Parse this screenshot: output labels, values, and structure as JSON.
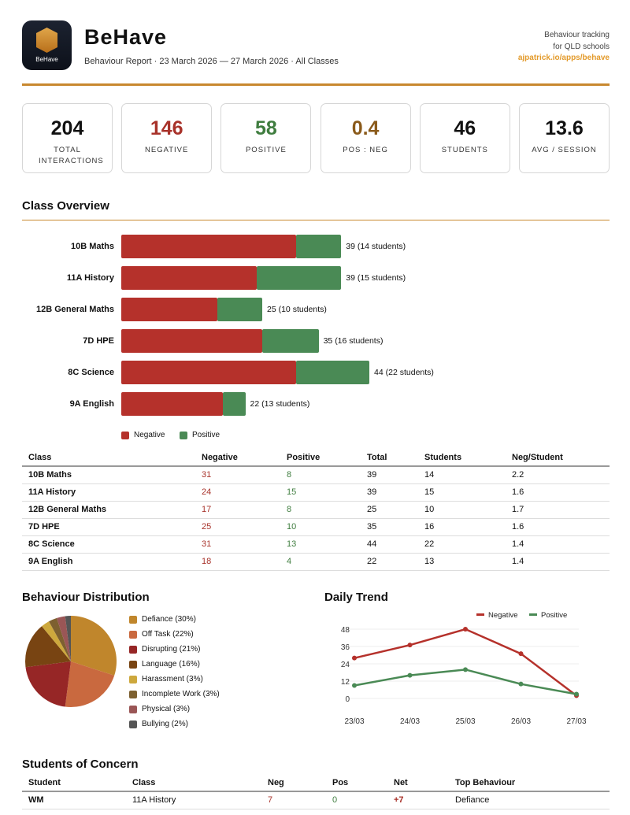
{
  "header": {
    "logo_text": "BeHave",
    "title": "BeHave",
    "subtitle": "Behaviour Report · 23 March 2026 — 27 March 2026 · All Classes",
    "tagline1": "Behaviour tracking",
    "tagline2": "for QLD schools",
    "link": "ajpatrick.io/apps/behave"
  },
  "stats": [
    {
      "value": "204",
      "label": "TOTAL INTERACTIONS",
      "color": "#111111"
    },
    {
      "value": "146",
      "label": "NEGATIVE",
      "color": "#a8322a"
    },
    {
      "value": "58",
      "label": "POSITIVE",
      "color": "#3f7d3f"
    },
    {
      "value": "0.4",
      "label": "POS : NEG",
      "color": "#8a5a1a"
    },
    {
      "value": "46",
      "label": "STUDENTS",
      "color": "#111111"
    },
    {
      "value": "13.6",
      "label": "AVG / SESSION",
      "color": "#111111"
    }
  ],
  "colors": {
    "negative": "#b5312b",
    "positive": "#4a8a55",
    "accent": "#c8882f"
  },
  "overview": {
    "title": "Class Overview",
    "legend": {
      "negative": "Negative",
      "positive": "Positive"
    },
    "bars": [
      {
        "class": "10B Maths",
        "negative": 31,
        "positive": 8,
        "label": "39 (14 students)"
      },
      {
        "class": "11A History",
        "negative": 24,
        "positive": 15,
        "label": "39 (15 students)"
      },
      {
        "class": "12B General Maths",
        "negative": 17,
        "positive": 8,
        "label": "25 (10 students)"
      },
      {
        "class": "7D HPE",
        "negative": 25,
        "positive": 10,
        "label": "35 (16 students)"
      },
      {
        "class": "8C Science",
        "negative": 31,
        "positive": 13,
        "label": "44 (22 students)"
      },
      {
        "class": "9A English",
        "negative": 18,
        "positive": 4,
        "label": "22 (13 students)"
      }
    ]
  },
  "class_table": {
    "headers": [
      "Class",
      "Negative",
      "Positive",
      "Total",
      "Students",
      "Neg/Student"
    ],
    "rows": [
      [
        "10B Maths",
        "31",
        "8",
        "39",
        "14",
        "2.2"
      ],
      [
        "11A History",
        "24",
        "15",
        "39",
        "15",
        "1.6"
      ],
      [
        "12B General Maths",
        "17",
        "8",
        "25",
        "10",
        "1.7"
      ],
      [
        "7D HPE",
        "25",
        "10",
        "35",
        "16",
        "1.6"
      ],
      [
        "8C Science",
        "31",
        "13",
        "44",
        "22",
        "1.4"
      ],
      [
        "9A English",
        "18",
        "4",
        "22",
        "13",
        "1.4"
      ]
    ]
  },
  "chart_data": [
    {
      "type": "pie",
      "title": "Behaviour Distribution",
      "legend": "right",
      "slices": [
        {
          "label": "Defiance (30%)",
          "value": 30,
          "color": "#c0862c"
        },
        {
          "label": "Off Task (22%)",
          "value": 22,
          "color": "#c9693f"
        },
        {
          "label": "Disrupting (21%)",
          "value": 21,
          "color": "#962626"
        },
        {
          "label": "Language (16%)",
          "value": 16,
          "color": "#784412"
        },
        {
          "label": "Harassment (3%)",
          "value": 3,
          "color": "#cda83d"
        },
        {
          "label": "Incomplete Work (3%)",
          "value": 3,
          "color": "#7d6030"
        },
        {
          "label": "Physical (3%)",
          "value": 3,
          "color": "#9a5656"
        },
        {
          "label": "Bullying (2%)",
          "value": 2,
          "color": "#555555"
        }
      ]
    },
    {
      "type": "line",
      "title": "Daily Trend",
      "legend": "top-right",
      "grid": true,
      "categories": [
        "23/03",
        "24/03",
        "25/03",
        "26/03",
        "27/03"
      ],
      "yticks": [
        "0",
        "12",
        "24",
        "36",
        "48"
      ],
      "ylim": [
        0,
        48
      ],
      "series": [
        {
          "name": "Negative",
          "color": "#b5312b",
          "values": [
            28,
            37,
            48,
            31,
            2
          ]
        },
        {
          "name": "Positive",
          "color": "#4a8a55",
          "values": [
            9,
            16,
            20,
            10,
            3
          ]
        }
      ]
    }
  ],
  "concern": {
    "title": "Students of Concern",
    "headers": [
      "Student",
      "Class",
      "Neg",
      "Pos",
      "Net",
      "Top Behaviour"
    ],
    "rows": [
      [
        "WM",
        "11A History",
        "7",
        "0",
        "+7",
        "Defiance"
      ]
    ]
  }
}
